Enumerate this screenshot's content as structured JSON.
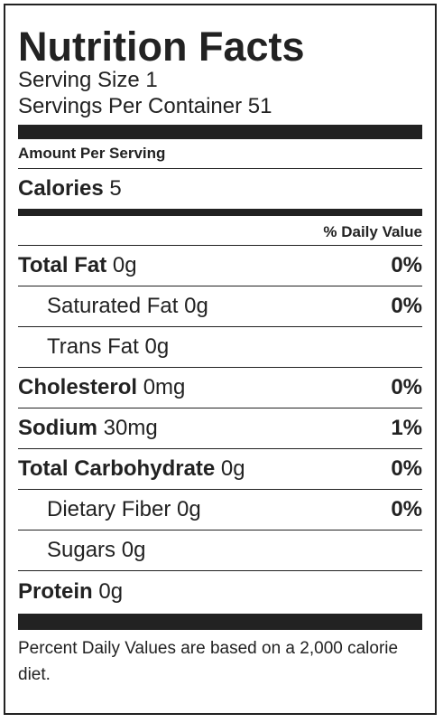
{
  "label": {
    "title": "Nutrition Facts",
    "serving_size": "Serving Size 1",
    "servings_per_container": "Servings Per Container 51",
    "amount_per_serving": "Amount Per Serving",
    "calories_label": "Calories",
    "calories_value": "5",
    "daily_value_header": "% Daily Value",
    "rows": [
      {
        "name": "Total Fat",
        "amount": "0g",
        "dv": "0%",
        "bold": true,
        "indent": false
      },
      {
        "name": "Saturated Fat",
        "amount": "0g",
        "dv": "0%",
        "bold": false,
        "indent": true
      },
      {
        "name": "Trans Fat",
        "amount": "0g",
        "dv": "",
        "bold": false,
        "indent": true
      },
      {
        "name": "Cholesterol",
        "amount": "0mg",
        "dv": "0%",
        "bold": true,
        "indent": false
      },
      {
        "name": "Sodium",
        "amount": "30mg",
        "dv": "1%",
        "bold": true,
        "indent": false
      },
      {
        "name": "Total Carbohydrate",
        "amount": "0g",
        "dv": "0%",
        "bold": true,
        "indent": false
      },
      {
        "name": "Dietary Fiber",
        "amount": "0g",
        "dv": "0%",
        "bold": false,
        "indent": true
      },
      {
        "name": "Sugars",
        "amount": "0g",
        "dv": "",
        "bold": false,
        "indent": true
      },
      {
        "name": "Protein",
        "amount": "0g",
        "dv": "",
        "bold": true,
        "indent": false
      }
    ],
    "footnote": "Percent Daily Values are based on a 2,000 calorie diet."
  }
}
